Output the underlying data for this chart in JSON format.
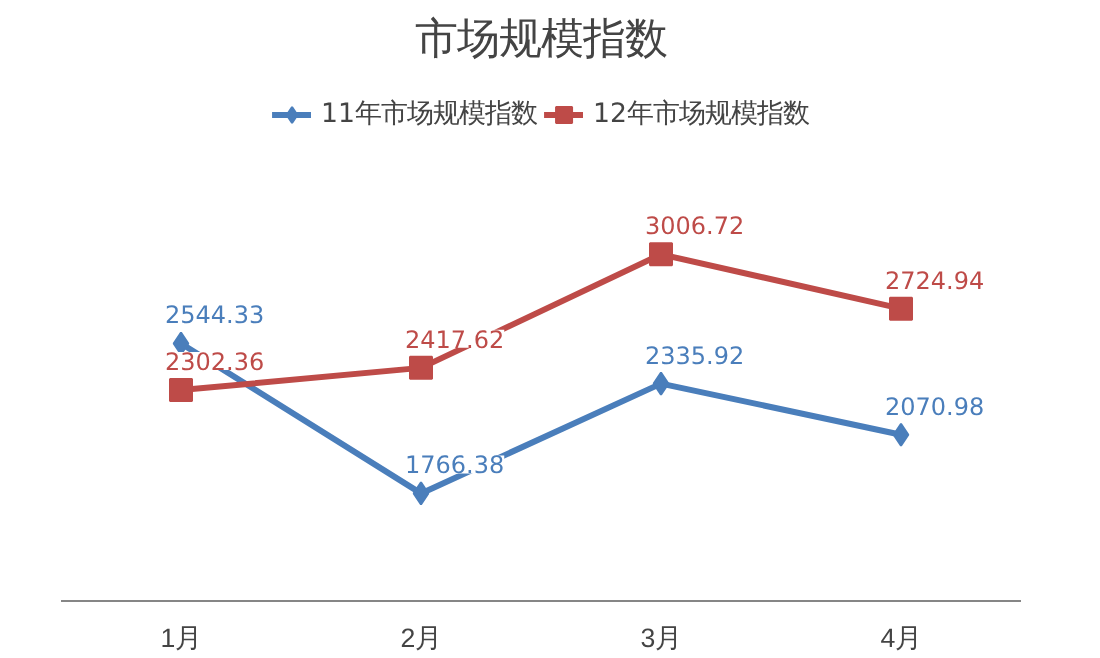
{
  "chart_data": {
    "type": "line",
    "title": "市场规模指数",
    "categories": [
      "1月",
      "2月",
      "3月",
      "4月"
    ],
    "series": [
      {
        "name": "11年市场规模指数",
        "color": "#4a7ebb",
        "marker": "diamond",
        "values": [
          2544.33,
          1766.38,
          2335.92,
          2070.98
        ]
      },
      {
        "name": "12年市场规模指数",
        "color": "#be4b48",
        "marker": "square",
        "values": [
          2302.36,
          2417.62,
          3006.72,
          2724.94
        ]
      }
    ],
    "data_labels": true,
    "legend": "top",
    "grid": false
  }
}
